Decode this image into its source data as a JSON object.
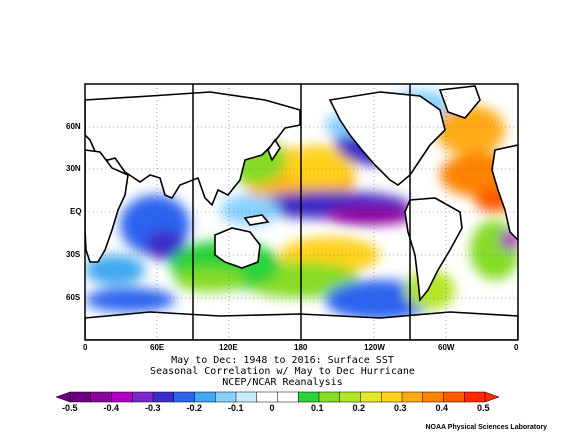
{
  "lat_labels": [
    "60N",
    "30N",
    "EQ",
    "30S",
    "60S"
  ],
  "lon_labels": [
    "0",
    "60E",
    "120E",
    "180",
    "120W",
    "60W",
    "0"
  ],
  "caption": {
    "line1": "May to Dec: 1948 to 2016: Surface SST",
    "line2": "Seasonal Correlation w/ May to Dec Hurricane",
    "line3": "NCEP/NCAR Reanalysis"
  },
  "colorbar": {
    "ticks": [
      "-0.5",
      "-0.4",
      "-0.3",
      "-0.2",
      "-0.1",
      "0",
      "0.1",
      "0.2",
      "0.3",
      "0.4",
      "0.5"
    ],
    "colors": [
      "#6a0080",
      "#8c00a0",
      "#b000c0",
      "#7c28c8",
      "#3c2cc8",
      "#2c64f0",
      "#40a8f0",
      "#86d0ff",
      "#c8ecff",
      "#ffffff",
      "#ffffff",
      "#2cd23a",
      "#86dc28",
      "#b4e628",
      "#e6e628",
      "#ffd21e",
      "#ffaa14",
      "#ff8200",
      "#ff5a00",
      "#ff2800"
    ]
  },
  "credit": "NOAA Physical Sciences Laboratory"
}
